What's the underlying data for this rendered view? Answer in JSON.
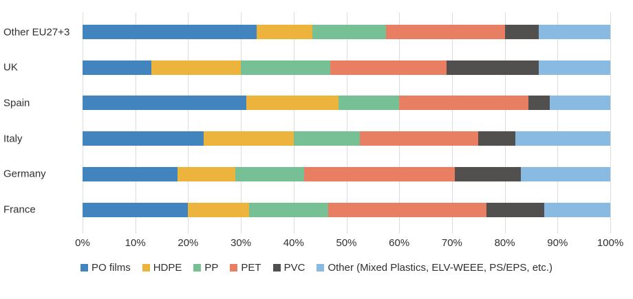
{
  "chart_data": {
    "type": "bar",
    "variant": "horizontal-stacked",
    "unit": "%",
    "categories_top_to_bottom": [
      "Other EU27+3",
      "UK",
      "Spain",
      "Italy",
      "Germany",
      "France"
    ],
    "series": [
      {
        "name": "PO films",
        "color": "#4285BE",
        "values": [
          33,
          13,
          31,
          23,
          18,
          20
        ]
      },
      {
        "name": "HDPE",
        "color": "#EDB43D",
        "values": [
          10.5,
          17,
          17.5,
          17,
          11,
          11.5
        ]
      },
      {
        "name": "PP",
        "color": "#77C095",
        "values": [
          14,
          17,
          11.5,
          12.5,
          13,
          15
        ]
      },
      {
        "name": "PET",
        "color": "#E97F62",
        "values": [
          22.5,
          22,
          24.5,
          22.5,
          28.5,
          30
        ]
      },
      {
        "name": "PVC",
        "color": "#51504F",
        "values": [
          6.5,
          17.5,
          4,
          7,
          12.5,
          11
        ]
      },
      {
        "name": "Other (Mixed Plastics, ELV-WEEE, PS/EPS, etc.)",
        "color": "#89BBE2",
        "values": [
          13.5,
          13.5,
          11.5,
          18,
          17,
          12.5
        ]
      }
    ],
    "x_ticks": [
      "0%",
      "10%",
      "20%",
      "30%",
      "40%",
      "50%",
      "60%",
      "70%",
      "80%",
      "90%",
      "100%"
    ],
    "xlim": [
      0,
      100
    ],
    "grid": "vertical",
    "legend_position": "bottom",
    "title": "",
    "xlabel": "",
    "ylabel": ""
  },
  "layout_colors": {
    "gridline": "#dcdcdc",
    "text": "#2f2f2f",
    "background": "#ffffff"
  }
}
